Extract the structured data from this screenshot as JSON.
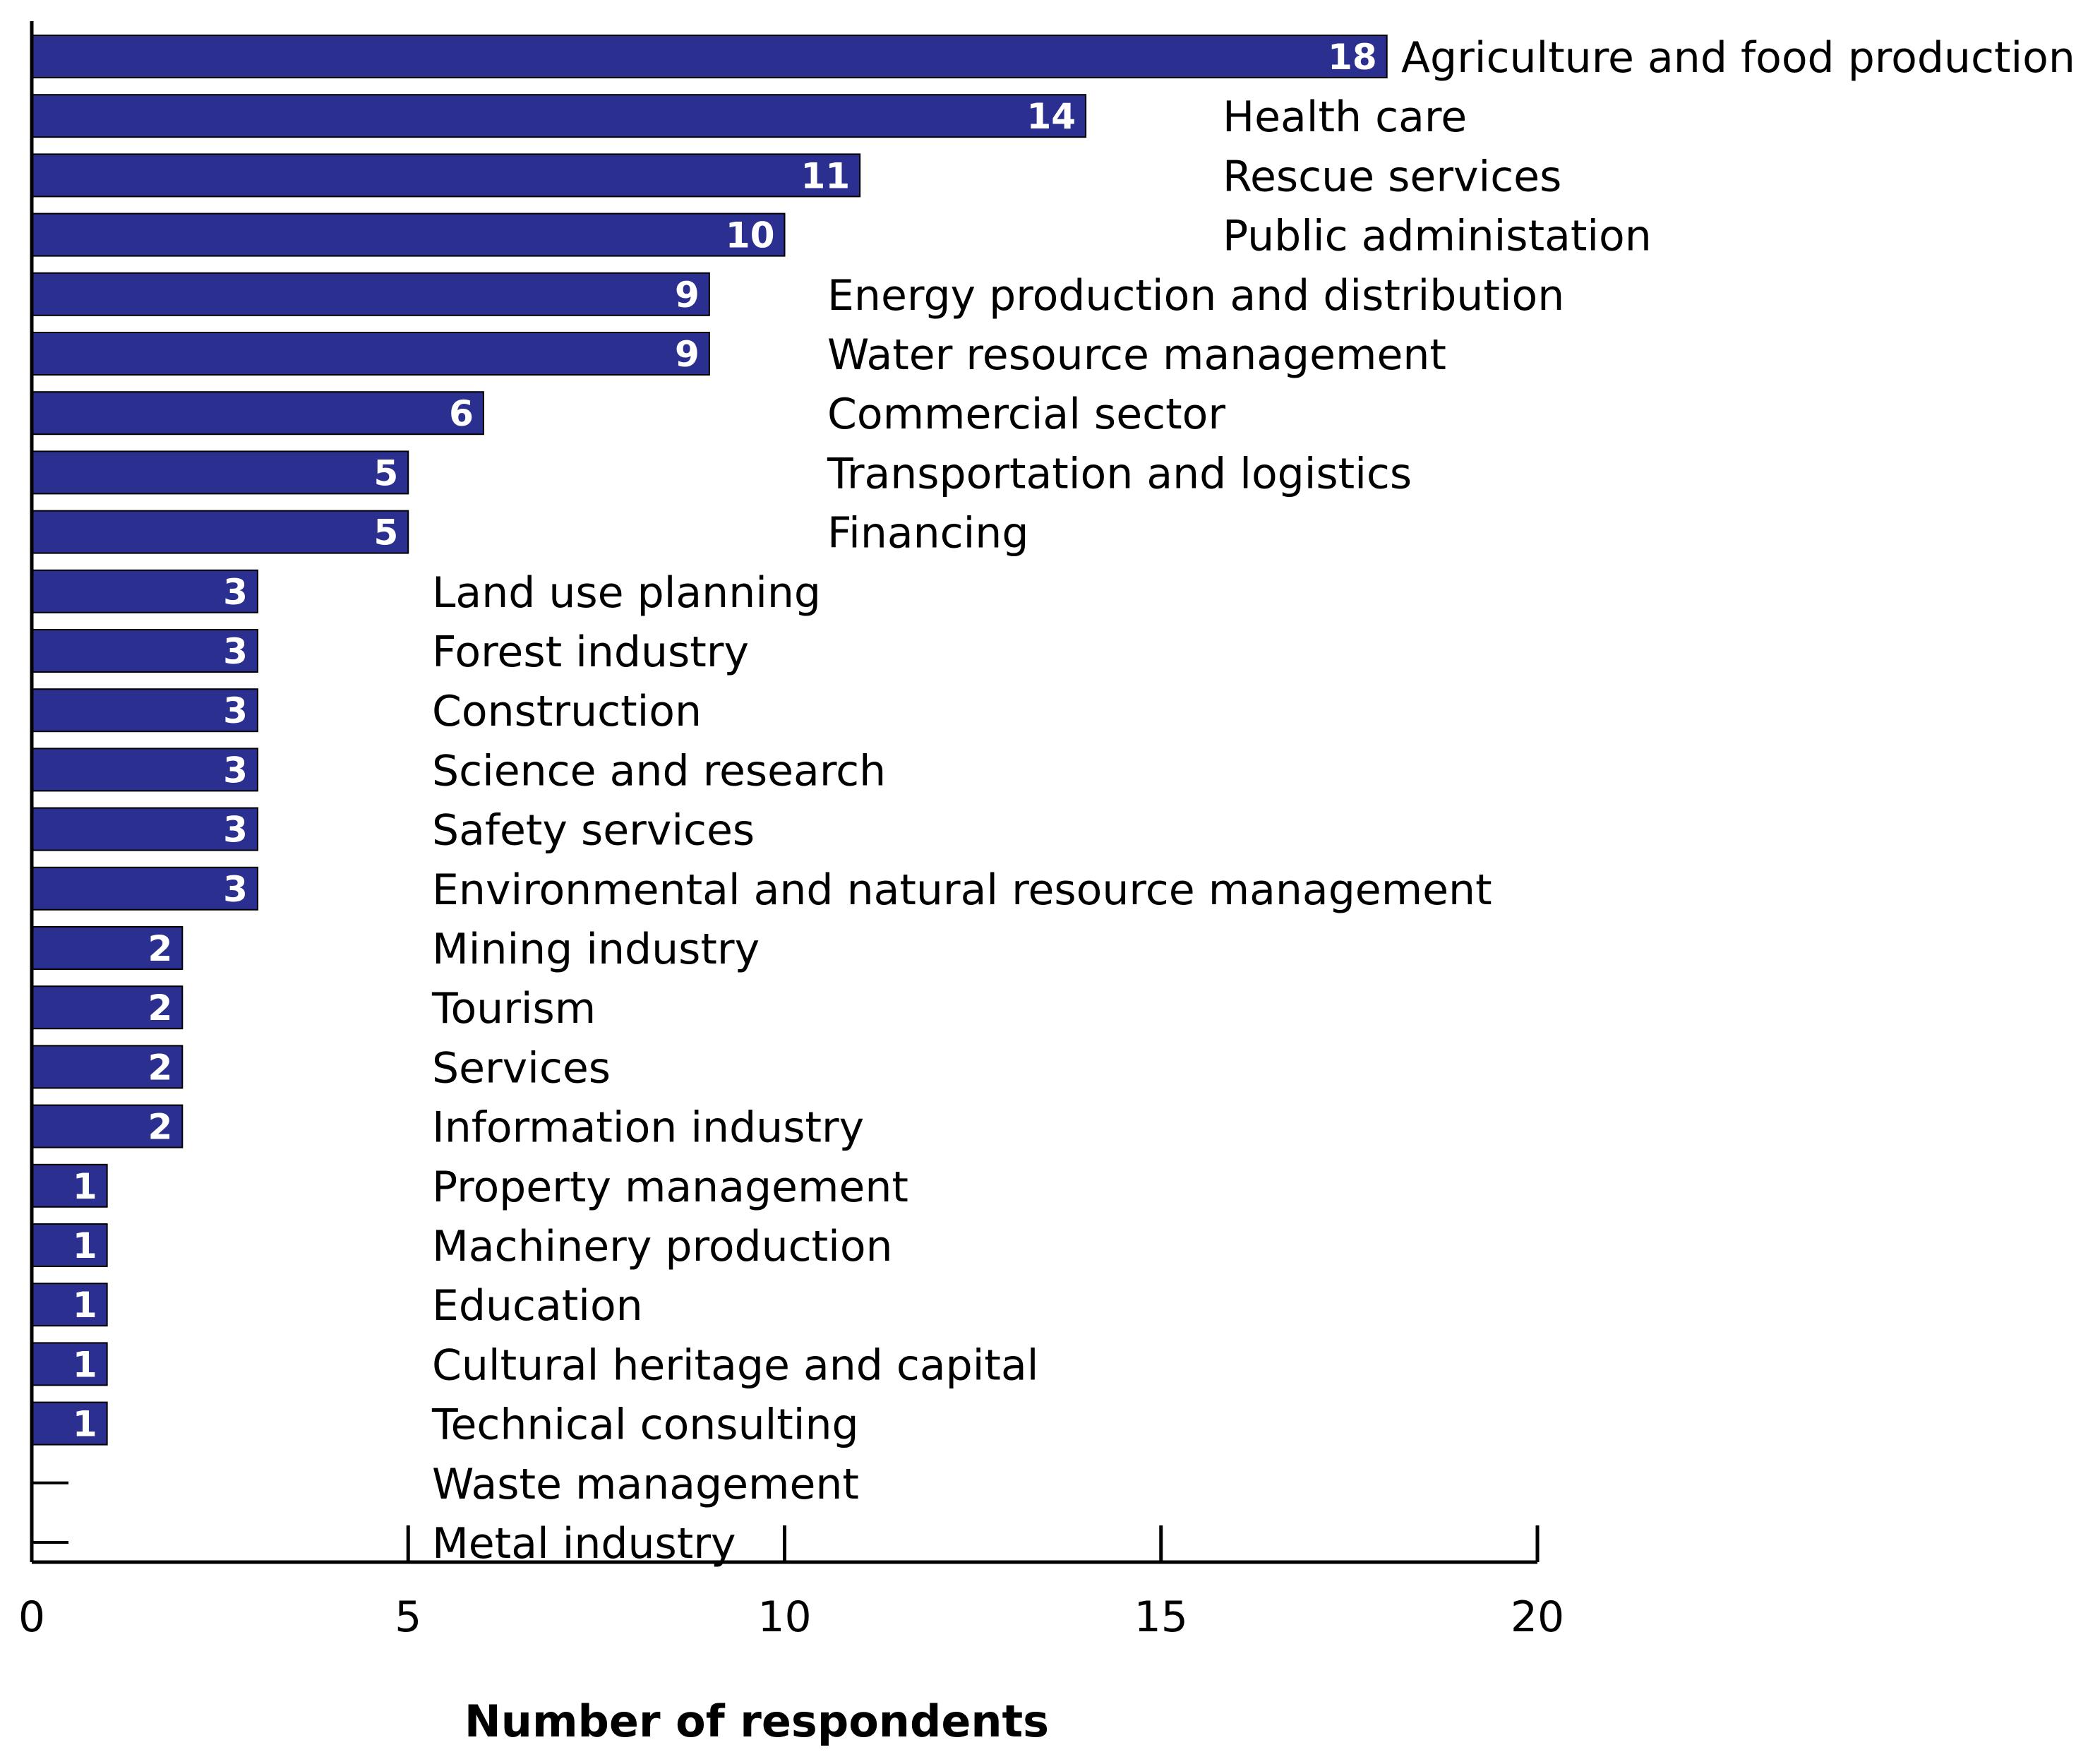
{
  "chart_data": {
    "type": "bar",
    "orientation": "horizontal",
    "xlabel": "Number of respondents",
    "ylabel": "",
    "xlim": [
      0,
      20
    ],
    "xticks": [
      0,
      5,
      10,
      15,
      20
    ],
    "bar_color": "#2b2f8f",
    "categories": [
      "Agriculture and food production",
      "Health care",
      "Rescue services",
      "Public administation",
      "Energy production and distribution",
      "Water resource management",
      "Commercial sector",
      "Transportation and logistics",
      "Financing",
      "Land use planning",
      "Forest industry",
      "Construction",
      "Science and research",
      "Safety services",
      "Environmental and natural resource management",
      "Mining industry",
      "Tourism",
      "Services",
      "Information industry",
      "Property management",
      "Machinery production",
      "Education",
      "Cultural heritage and capital",
      "Technical consulting",
      "Waste management",
      "Metal industry"
    ],
    "values": [
      18,
      14,
      11,
      10,
      9,
      9,
      6,
      5,
      5,
      3,
      3,
      3,
      3,
      3,
      3,
      2,
      2,
      2,
      2,
      1,
      1,
      1,
      1,
      1,
      0,
      0
    ]
  }
}
